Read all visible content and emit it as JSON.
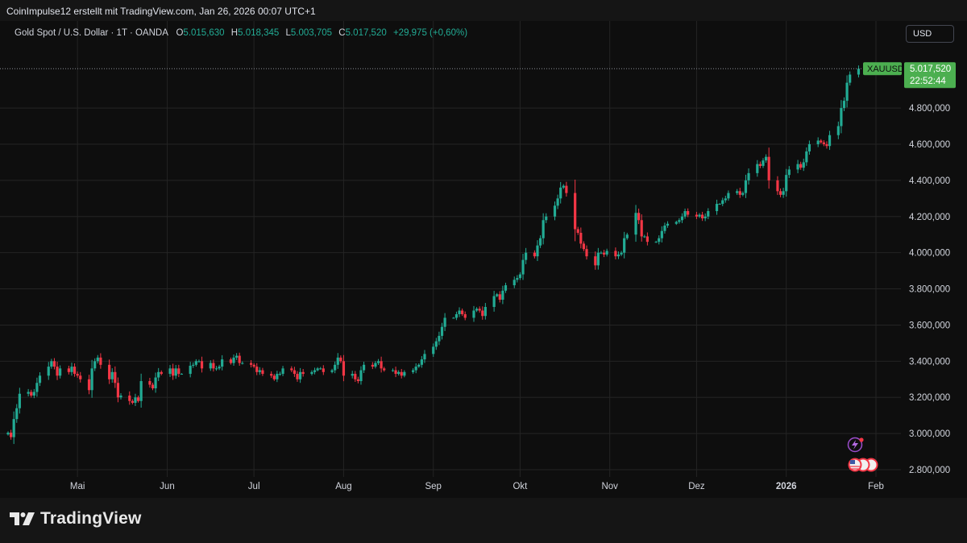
{
  "header": {
    "credit": "CoinImpulse12 erstellt mit TradingView.com, Jan 26, 2026 00:07 UTC+1"
  },
  "legend": {
    "symbol": "Gold Spot / U.S. Dollar · 1T · OANDA",
    "o_label": "O",
    "o": "5.015,630",
    "h_label": "H",
    "h": "5.018,345",
    "l_label": "L",
    "l": "5.003,705",
    "c_label": "C",
    "c": "5.017,520",
    "change": "+29,975 (+0,60%)"
  },
  "currency_button": "USD",
  "price_tag": {
    "symbol": "XAUUSD",
    "price": "5.017,520",
    "countdown": "22:52:44"
  },
  "footer": {
    "brand": "TradingView"
  },
  "colors": {
    "up": "#22ab94",
    "down": "#f23645",
    "tag": "#4caf50",
    "grid": "#242424"
  },
  "icons": [
    "lightning-icon",
    "us-flag-event-icon"
  ],
  "chart_data": {
    "type": "candlestick",
    "y_axis": {
      "min": 2760,
      "max": 5130,
      "ticks": [
        2800,
        3000,
        3200,
        3400,
        3600,
        3800,
        4000,
        4200,
        4400,
        4600,
        4800
      ],
      "tick_labels": [
        "2.800,000",
        "3.000,000",
        "3.200,000",
        "3.400,000",
        "3.600,000",
        "3.800,000",
        "4.000,000",
        "4.200,000",
        "4.400,000",
        "4.600,000",
        "4.800,000"
      ]
    },
    "x_axis": {
      "labels": [
        {
          "text": "Mai",
          "date": "2025-05-01"
        },
        {
          "text": "Jun",
          "date": "2025-06-01"
        },
        {
          "text": "Jul",
          "date": "2025-07-01"
        },
        {
          "text": "Aug",
          "date": "2025-08-01"
        },
        {
          "text": "Sep",
          "date": "2025-09-01"
        },
        {
          "text": "Okt",
          "date": "2025-10-01"
        },
        {
          "text": "Nov",
          "date": "2025-11-01"
        },
        {
          "text": "Dez",
          "date": "2025-12-01"
        },
        {
          "text": "2026",
          "date": "2026-01-01"
        },
        {
          "text": "Feb",
          "date": "2026-02-01"
        }
      ]
    },
    "grid": true,
    "last_price": 5017.52,
    "close_series_start": "2025-04-07",
    "close_series_step": "1 trading day",
    "closes": [
      3005,
      2980,
      3080,
      3140,
      3220,
      3230,
      3210,
      3230,
      3280,
      3320,
      3370,
      3400,
      3370,
      3320,
      3360,
      3340,
      3370,
      3330,
      3320,
      3300,
      3240,
      3360,
      3400,
      3420,
      3380,
      3300,
      3340,
      3280,
      3200,
      3210,
      3180,
      3170,
      3200,
      3180,
      3290,
      3270,
      3250,
      3310,
      3340,
      3330,
      3360,
      3320,
      3360,
      3330,
      3330,
      3375,
      3380,
      3400,
      3400,
      3360,
      3390,
      3360,
      3360,
      3370,
      3410,
      3390,
      3420,
      3430,
      3390,
      3390,
      3380,
      3370,
      3340,
      3350,
      3330,
      3320,
      3300,
      3330,
      3330,
      3360,
      3350,
      3330,
      3300,
      3340,
      3330,
      3340,
      3350,
      3360,
      3360,
      3340,
      3350,
      3380,
      3420,
      3400,
      3320,
      3330,
      3300,
      3290,
      3350,
      3380,
      3370,
      3390,
      3400,
      3360,
      3350,
      3350,
      3330,
      3340,
      3320,
      3340,
      3350,
      3370,
      3380,
      3410,
      3440,
      3480,
      3510,
      3540,
      3590,
      3640,
      3640,
      3660,
      3680,
      3660,
      3640,
      3680,
      3690,
      3680,
      3650,
      3700,
      3760,
      3770,
      3740,
      3790,
      3820,
      3850,
      3860,
      3880,
      3960,
      4000,
      3980,
      4040,
      4080,
      4180,
      4200,
      4260,
      4300,
      4360,
      4370,
      4330,
      4130,
      4110,
      4050,
      4020,
      3980,
      3930,
      4000,
      4000,
      3990,
      4010,
      3980,
      3990,
      4000,
      4080,
      4100,
      4220,
      4180,
      4090,
      4090,
      4060,
      4060,
      4080,
      4120,
      4150,
      4160,
      4170,
      4180,
      4200,
      4230,
      4210,
      4200,
      4210,
      4190,
      4200,
      4230,
      4270,
      4270,
      4290,
      4300,
      4330,
      4340,
      4320,
      4330,
      4400,
      4440,
      4490,
      4480,
      4510,
      4530,
      4400,
      4340,
      4320,
      4340,
      4430,
      4460,
      4490,
      4470,
      4500,
      4560,
      4600,
      4620,
      4610,
      4600,
      4590,
      4650,
      4700,
      4800,
      4840,
      4940,
      4985,
      5017.52
    ]
  }
}
